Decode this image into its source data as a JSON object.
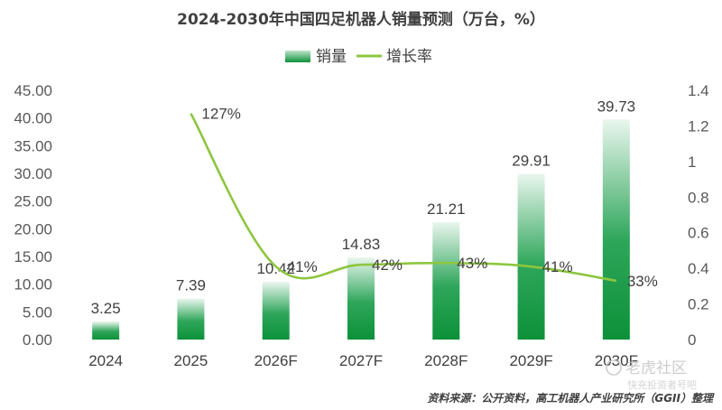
{
  "chart_data": {
    "type": "bar",
    "title": "2024-2030年中国四足机器人销量预测（万台，%）",
    "categories": [
      "2024",
      "2025",
      "2026F",
      "2027F",
      "2028F",
      "2029F",
      "2030F"
    ],
    "series": [
      {
        "name": "销量",
        "type": "bar",
        "axis": "left",
        "values": [
          3.25,
          7.39,
          10.42,
          14.83,
          21.21,
          29.91,
          39.73
        ],
        "labels": [
          "3.25",
          "7.39",
          "10.42",
          "14.83",
          "21.21",
          "29.91",
          "39.73"
        ],
        "color": "#1a9a45"
      },
      {
        "name": "增长率",
        "type": "line",
        "axis": "right",
        "values": [
          null,
          1.27,
          0.41,
          0.42,
          0.43,
          0.41,
          0.33
        ],
        "labels": [
          "",
          "127%",
          "41%",
          "42%",
          "43%",
          "41%",
          "33%"
        ],
        "color": "#8dc63f"
      }
    ],
    "y_left": {
      "min": 0,
      "max": 45,
      "ticks": [
        "0.00",
        "5.00",
        "10.00",
        "15.00",
        "20.00",
        "25.00",
        "30.00",
        "35.00",
        "40.00",
        "45.00"
      ]
    },
    "y_right": {
      "min": 0,
      "max": 1.4,
      "ticks": [
        "0",
        "0.2",
        "0.4",
        "0.6",
        "0.8",
        "1",
        "1.2",
        "1.4"
      ]
    },
    "grid": false,
    "legend": "top-center"
  },
  "source": "资料来源：公开资料，高工机器人产业研究所（GGII）整理",
  "watermark": {
    "main": "老虎社区",
    "sub": "快充投资者号吧"
  }
}
